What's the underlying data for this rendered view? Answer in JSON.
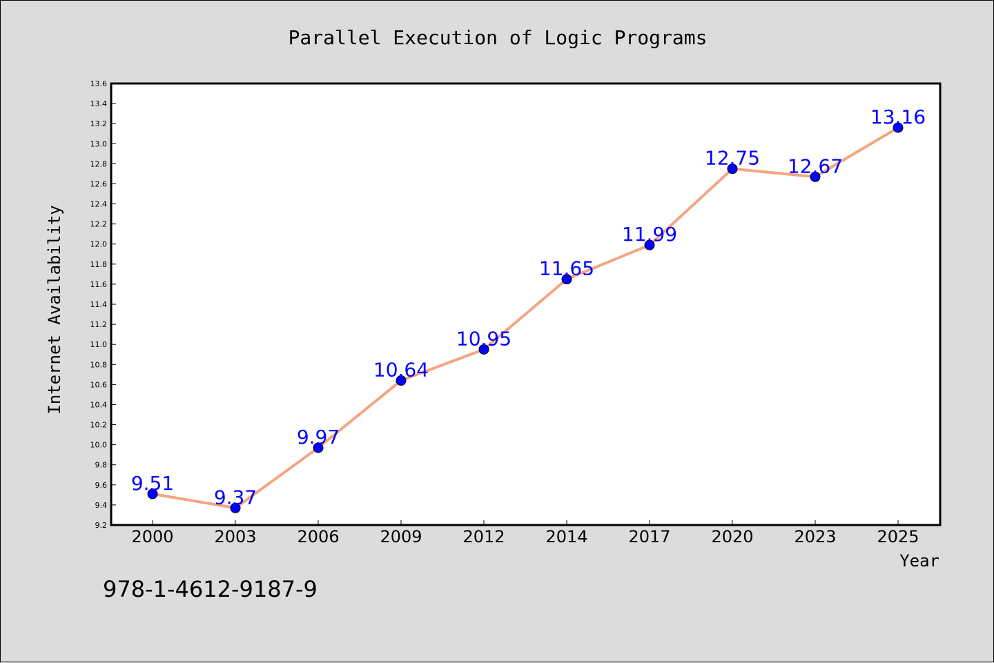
{
  "chart_data": {
    "type": "line",
    "title": "Parallel Execution of Logic Programs",
    "xlabel": "Year",
    "ylabel": "Internet Availability",
    "categories": [
      "2000",
      "2003",
      "2006",
      "2009",
      "2012",
      "2014",
      "2017",
      "2020",
      "2023",
      "2025"
    ],
    "series": [
      {
        "values": [
          9.51,
          9.37,
          9.97,
          10.64,
          10.95,
          11.65,
          11.99,
          12.75,
          12.67,
          13.16
        ],
        "data_labels": [
          "9.51",
          "9.37",
          "9.97",
          "10.64",
          "10.95",
          "11.65",
          "11.99",
          "12.75",
          "12.67",
          "13.16"
        ],
        "line_color": "#f4a582",
        "marker_color": "#0000ff",
        "label_color": "#0000ff"
      }
    ],
    "ylim": [
      9.2,
      13.6
    ],
    "yticks": [
      "9.2",
      "9.4",
      "9.6",
      "9.8",
      "10.0",
      "10.2",
      "10.4",
      "10.6",
      "10.8",
      "11.0",
      "11.2",
      "11.4",
      "11.6",
      "11.8",
      "12.0",
      "12.2",
      "12.4",
      "12.6",
      "12.8",
      "13.0",
      "13.2",
      "13.4",
      "13.6"
    ],
    "grid": false,
    "legend": "none"
  },
  "footer": {
    "isbn": "978-1-4612-9187-9"
  },
  "colors": {
    "background": "#dcdcdc",
    "plot_background": "#ffffff",
    "axis": "#000000"
  }
}
